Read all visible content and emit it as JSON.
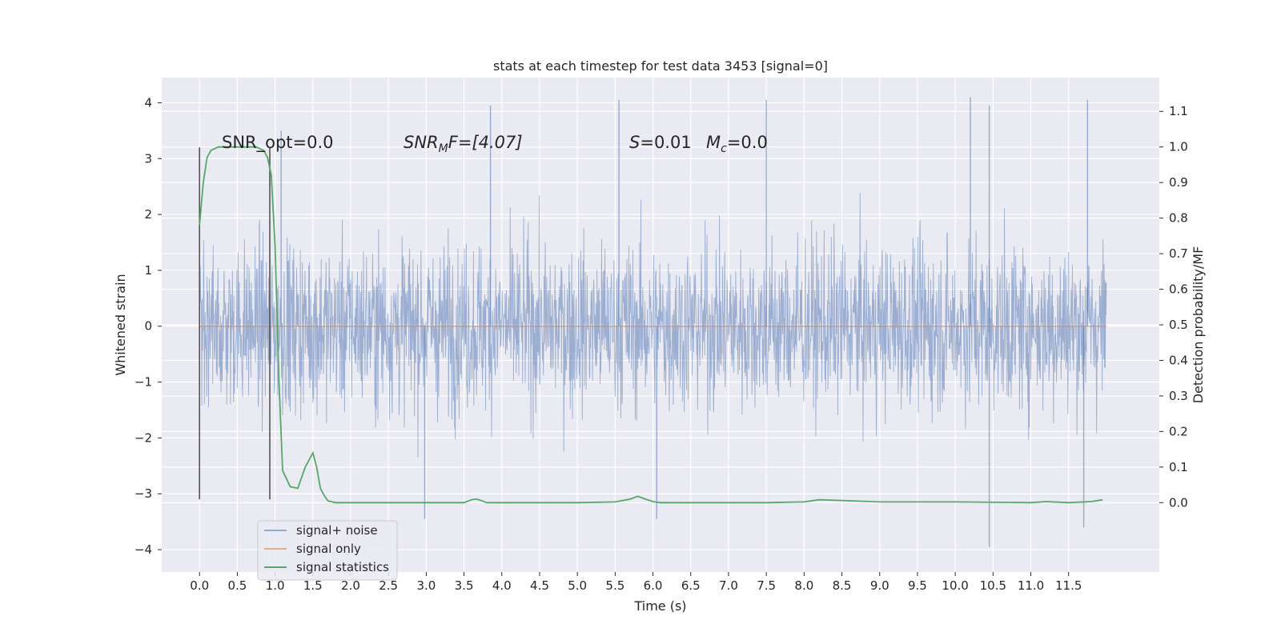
{
  "chart_data": {
    "type": "line",
    "title": "stats at each timestep for test data 3453 [signal=0]",
    "xlabel": "Time (s)",
    "ylabel": "Whitened strain",
    "ylabel_right": "Detection probability/MF",
    "xlim": [
      -0.5,
      12.7
    ],
    "ylim": [
      -4.4,
      4.45
    ],
    "ylim_right": [
      -0.195,
      1.195
    ],
    "x_ticks": [
      "0.0",
      "0.5",
      "1.0",
      "1.5",
      "2.0",
      "2.5",
      "3.0",
      "3.5",
      "4.0",
      "4.5",
      "5.0",
      "5.5",
      "6.0",
      "6.5",
      "7.0",
      "7.5",
      "8.0",
      "8.5",
      "9.0",
      "9.5",
      "10.0",
      "10.5",
      "11.0",
      "11.5"
    ],
    "y_ticks": [
      "4",
      "3",
      "2",
      "1",
      "0",
      "−1",
      "−2",
      "−3",
      "−4"
    ],
    "y_ticks_right": [
      "1.1",
      "1.0",
      "0.9",
      "0.8",
      "0.7",
      "0.6",
      "0.5",
      "0.4",
      "0.3",
      "0.2",
      "0.1",
      "0.0"
    ],
    "grid": true,
    "legend_position": "lower-left",
    "annotations": {
      "snr_opt": "SNR_opt=0.0",
      "snr_mf_label": "SNR",
      "snr_mf_sub": "M",
      "snr_mf_rest": "F=[4.07]",
      "s_label": "S",
      "s_value": "=0.01",
      "mc_label": "M",
      "mc_sub": "c",
      "mc_value": "=0.0"
    },
    "series": [
      {
        "name": "signal+ noise",
        "color": "#4c72b0",
        "axis": "left",
        "description": "dense noise trace, sample rate ~2048 Hz",
        "x_range": [
          0.0,
          12.0
        ],
        "peaks": [
          {
            "x": 1.08,
            "y": 3.5
          },
          {
            "x": 3.85,
            "y": 3.95
          },
          {
            "x": 5.55,
            "y": 4.05
          },
          {
            "x": 7.5,
            "y": 4.05
          },
          {
            "x": 10.2,
            "y": 4.1
          },
          {
            "x": 10.45,
            "y": 3.95
          },
          {
            "x": 11.75,
            "y": 4.05
          },
          {
            "x": 2.98,
            "y": -3.45
          },
          {
            "x": 6.05,
            "y": -3.45
          },
          {
            "x": 10.45,
            "y": -3.95
          },
          {
            "x": 11.7,
            "y": -3.6
          }
        ]
      },
      {
        "name": "signal only",
        "color": "#dd8452",
        "axis": "left",
        "x": [
          0.0,
          12.0
        ],
        "y": [
          0.0,
          0.0
        ]
      },
      {
        "name": "signal statistics",
        "color": "#55a868",
        "axis": "right",
        "x": [
          0.0,
          0.05,
          0.1,
          0.15,
          0.25,
          0.4,
          0.6,
          0.75,
          0.85,
          0.9,
          0.95,
          1.0,
          1.05,
          1.1,
          1.2,
          1.3,
          1.4,
          1.5,
          1.55,
          1.6,
          1.65,
          1.7,
          1.8,
          2.0,
          2.5,
          3.0,
          3.5,
          3.6,
          3.65,
          3.7,
          3.8,
          3.9,
          4.0,
          5.0,
          5.5,
          5.7,
          5.8,
          5.9,
          6.0,
          6.1,
          6.5,
          7.5,
          8.0,
          8.2,
          8.5,
          9.0,
          10.0,
          11.0,
          11.2,
          11.5,
          11.8,
          11.95
        ],
        "y": [
          0.78,
          0.9,
          0.97,
          0.99,
          1.0,
          1.0,
          1.0,
          1.0,
          0.99,
          0.97,
          0.92,
          0.72,
          0.35,
          0.09,
          0.045,
          0.04,
          0.1,
          0.14,
          0.1,
          0.04,
          0.02,
          0.005,
          0.0,
          0.0,
          0.0,
          0.0,
          0.0,
          0.008,
          0.01,
          0.008,
          0.0,
          0.0,
          0.0,
          0.0,
          0.002,
          0.01,
          0.018,
          0.01,
          0.003,
          0.0,
          0.0,
          0.0,
          0.002,
          0.008,
          0.006,
          0.002,
          0.002,
          0.0,
          0.003,
          0.0,
          0.003,
          0.008
        ]
      }
    ],
    "markers": [
      {
        "x": 0.0,
        "y_bottom": -3.1,
        "y_top": 3.2
      },
      {
        "x": 0.93,
        "y_bottom": -3.1,
        "y_top": 3.2
      }
    ]
  }
}
